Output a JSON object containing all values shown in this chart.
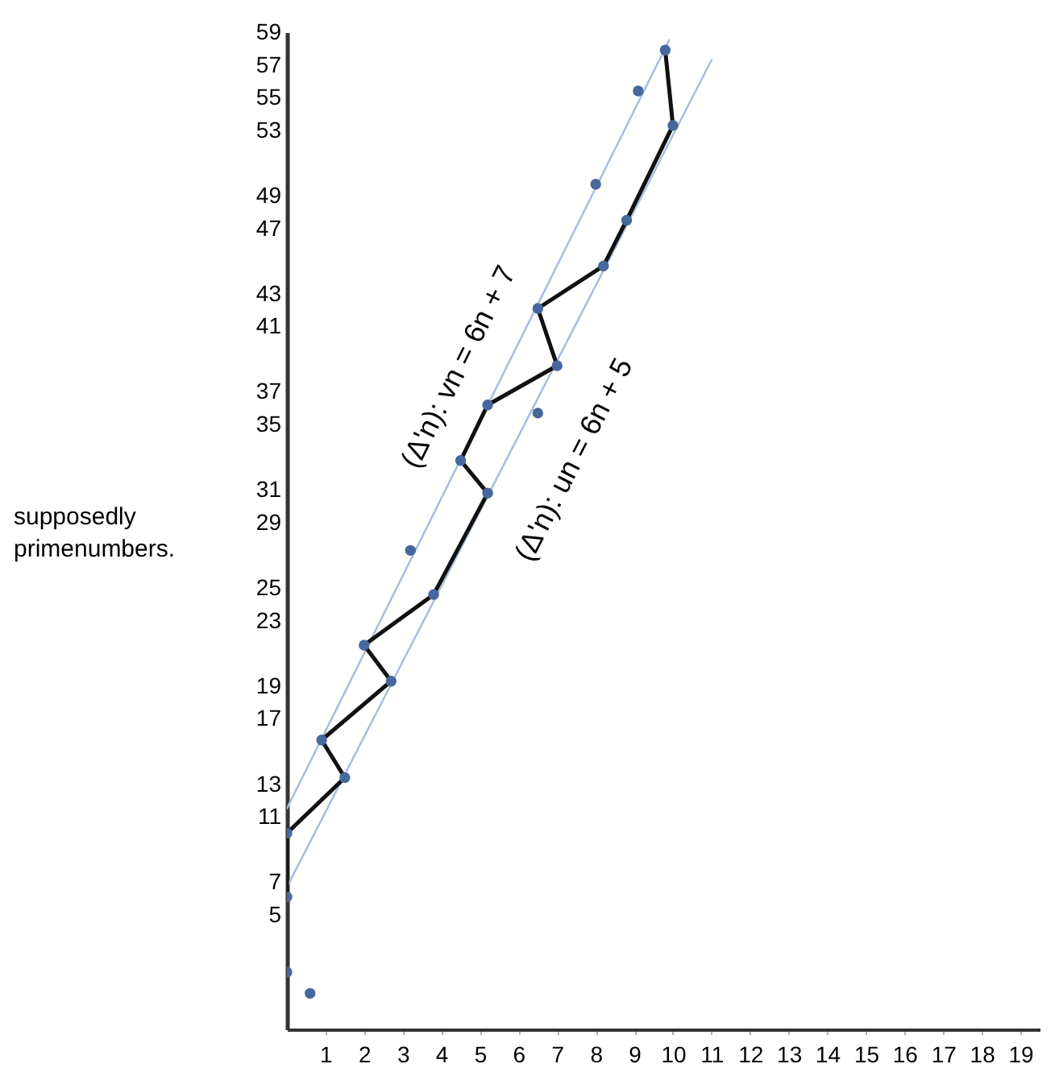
{
  "chart_data": {
    "type": "scatter",
    "ylabel": "supposedly primenumbers.",
    "xlim": [
      0,
      19.5
    ],
    "xticks": [
      1,
      2,
      3,
      4,
      5,
      6,
      7,
      8,
      9,
      10,
      11,
      12,
      13,
      14,
      15,
      16,
      17,
      18,
      19
    ],
    "ylim": [
      -2,
      59
    ],
    "yticks": [
      5,
      7,
      11,
      13,
      17,
      19,
      23,
      25,
      29,
      31,
      35,
      37,
      41,
      43,
      47,
      49,
      53,
      55,
      57,
      59
    ],
    "grid": false,
    "series": [
      {
        "name": "(Δ'n): vn = 6n + 7",
        "type": "line",
        "color": "#a9bfdc",
        "x": [
          0,
          9.9
        ],
        "values": [
          11.5,
          58.5
        ]
      },
      {
        "name": "(Δ'n): un = 6n + 5",
        "type": "line",
        "color": "#a9bfdc",
        "x": [
          0,
          11.0
        ],
        "values": [
          6.7,
          57.3
        ]
      },
      {
        "type": "line",
        "color": "#111111",
        "x": [
          0,
          0,
          1.5,
          0.9,
          2.7,
          2.0,
          3.8,
          5.2,
          4.5,
          5.2,
          7.0,
          6.5,
          8.2,
          8.8,
          10.0,
          9.8
        ],
        "values": [
          6.1,
          10,
          13.4,
          15.7,
          19.3,
          21.5,
          24.6,
          30.8,
          32.8,
          36.2,
          38.6,
          42.1,
          44.7,
          47.5,
          53.3,
          57.9
        ]
      },
      {
        "color": "#46689c",
        "x": [
          0,
          0,
          1.5,
          0.9,
          2.7,
          2.0,
          3.8,
          3.2,
          5.2,
          4.5,
          5.2,
          6.5,
          7.0,
          6.5,
          8.2,
          8.8,
          8.0,
          9.1,
          10.0,
          9.8,
          0,
          0.6
        ],
        "values": [
          6.1,
          10,
          13.4,
          15.7,
          19.3,
          21.5,
          24.6,
          27.3,
          30.8,
          32.8,
          36.2,
          35.7,
          38.6,
          42.1,
          44.7,
          47.5,
          49.7,
          55.4,
          53.3,
          57.9,
          1.5,
          0.2
        ]
      }
    ]
  }
}
